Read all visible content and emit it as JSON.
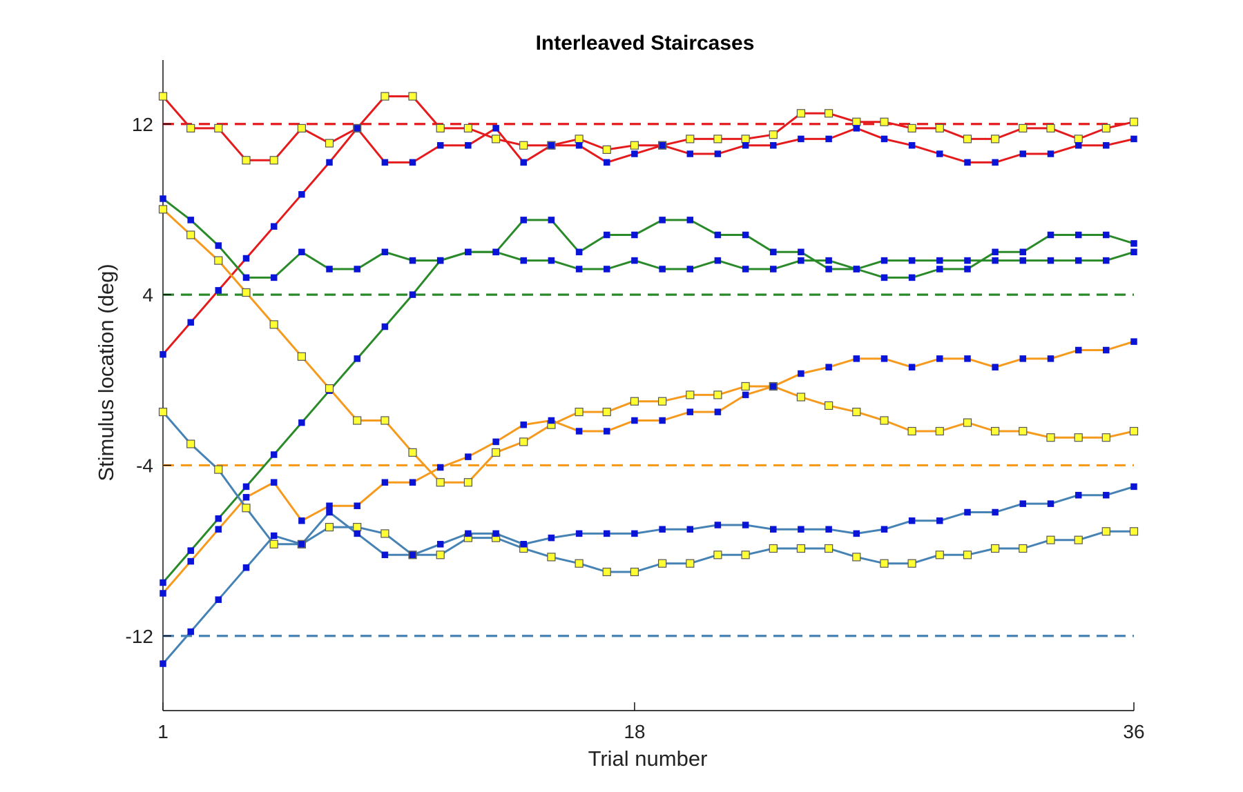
{
  "chart_data": {
    "type": "line",
    "title": "Interleaved Staircases",
    "xlabel": "Trial number",
    "ylabel": "Stimulus location (deg)",
    "xlim": [
      1,
      36
    ],
    "ylim": [
      -15.5,
      15
    ],
    "xticks": [
      1,
      18,
      36
    ],
    "yticks": [
      -12,
      -4,
      4,
      12
    ],
    "grid": false,
    "legend": "none",
    "colors": {
      "red": "#e41a1c",
      "green": "#2a8a2a",
      "orange": "#f59a1c",
      "blue": "#4682b4",
      "marker_blue": "#0a14d6",
      "marker_yellow": "#ffff33"
    },
    "targets": [
      {
        "color": "red",
        "y": 12
      },
      {
        "color": "green",
        "y": 4
      },
      {
        "color": "orange",
        "y": -4
      },
      {
        "color": "blue",
        "y": -12
      }
    ],
    "x": [
      1,
      2,
      3,
      4,
      5,
      6,
      7,
      8,
      9,
      10,
      11,
      12,
      13,
      14,
      15,
      16,
      17,
      18,
      19,
      20,
      21,
      22,
      23,
      24,
      25,
      26,
      27,
      28,
      29,
      30,
      31,
      32,
      33,
      34,
      35,
      36
    ],
    "series": [
      {
        "color": "red",
        "marker": "yellow",
        "values": [
          13.3,
          11.8,
          11.8,
          10.3,
          10.3,
          11.8,
          11.1,
          11.8,
          13.3,
          13.3,
          11.8,
          11.8,
          11.3,
          11.0,
          11.0,
          11.3,
          10.8,
          11.0,
          11.0,
          11.3,
          11.3,
          11.3,
          11.5,
          12.5,
          12.5,
          12.1,
          12.1,
          11.8,
          11.8,
          11.3,
          11.3,
          11.8,
          11.8,
          11.3,
          11.8,
          12.1
        ]
      },
      {
        "color": "red",
        "marker": "blue",
        "values": [
          1.2,
          2.7,
          4.2,
          5.7,
          7.2,
          8.7,
          10.2,
          11.8,
          10.2,
          10.2,
          11.0,
          11.0,
          11.8,
          10.2,
          11.0,
          11.0,
          10.2,
          10.6,
          11.0,
          10.6,
          10.6,
          11.0,
          11.0,
          11.3,
          11.3,
          11.8,
          11.3,
          11.0,
          10.6,
          10.2,
          10.2,
          10.6,
          10.6,
          11.0,
          11.0,
          11.3
        ]
      },
      {
        "color": "green",
        "marker": "blue",
        "values": [
          8.5,
          7.5,
          6.3,
          4.8,
          4.8,
          6.0,
          5.2,
          5.2,
          6.0,
          5.6,
          5.6,
          6.0,
          6.0,
          7.5,
          7.5,
          6.0,
          6.8,
          6.8,
          7.5,
          7.5,
          6.8,
          6.8,
          6.0,
          6.0,
          5.2,
          5.2,
          4.8,
          4.8,
          5.2,
          5.2,
          6.0,
          6.0,
          6.8,
          6.8,
          6.8,
          6.4
        ]
      },
      {
        "color": "green",
        "marker": "blue",
        "values": [
          -9.5,
          -8.0,
          -6.5,
          -5.0,
          -3.5,
          -2.0,
          -0.5,
          1.0,
          2.5,
          4.0,
          5.6,
          6.0,
          6.0,
          5.6,
          5.6,
          5.2,
          5.2,
          5.6,
          5.2,
          5.2,
          5.6,
          5.2,
          5.2,
          5.6,
          5.6,
          5.2,
          5.6,
          5.6,
          5.6,
          5.6,
          5.6,
          5.6,
          5.6,
          5.6,
          5.6,
          6.0
        ]
      },
      {
        "color": "orange",
        "marker": "yellow",
        "values": [
          8.0,
          6.8,
          5.6,
          4.1,
          2.6,
          1.1,
          -0.4,
          -1.9,
          -1.9,
          -3.4,
          -4.8,
          -4.8,
          -3.4,
          -2.9,
          -2.1,
          -1.5,
          -1.5,
          -1.0,
          -1.0,
          -0.7,
          -0.7,
          -0.3,
          -0.3,
          -0.8,
          -1.2,
          -1.5,
          -1.9,
          -2.4,
          -2.4,
          -2.0,
          -2.4,
          -2.4,
          -2.7,
          -2.7,
          -2.7,
          -2.4
        ]
      },
      {
        "color": "orange",
        "marker": "blue",
        "values": [
          -10.0,
          -8.5,
          -7.0,
          -5.5,
          -4.8,
          -6.6,
          -5.9,
          -5.9,
          -4.8,
          -4.8,
          -4.1,
          -3.6,
          -2.9,
          -2.1,
          -1.9,
          -2.4,
          -2.4,
          -1.9,
          -1.9,
          -1.5,
          -1.5,
          -0.7,
          -0.3,
          0.3,
          0.6,
          1.0,
          1.0,
          0.6,
          1.0,
          1.0,
          0.6,
          1.0,
          1.0,
          1.4,
          1.4,
          1.8
        ]
      },
      {
        "color": "blue",
        "marker": "yellow",
        "values": [
          -1.5,
          -3.0,
          -4.2,
          -6.0,
          -7.7,
          -7.7,
          -6.9,
          -6.9,
          -7.2,
          -8.2,
          -8.2,
          -7.4,
          -7.4,
          -7.9,
          -8.3,
          -8.6,
          -9.0,
          -9.0,
          -8.6,
          -8.6,
          -8.2,
          -8.2,
          -7.9,
          -7.9,
          -7.9,
          -8.3,
          -8.6,
          -8.6,
          -8.2,
          -8.2,
          -7.9,
          -7.9,
          -7.5,
          -7.5,
          -7.1,
          -7.1
        ]
      },
      {
        "color": "blue",
        "marker": "blue",
        "values": [
          -13.3,
          -11.8,
          -10.3,
          -8.8,
          -7.3,
          -7.7,
          -6.2,
          -7.2,
          -8.2,
          -8.2,
          -7.7,
          -7.2,
          -7.2,
          -7.7,
          -7.4,
          -7.2,
          -7.2,
          -7.2,
          -7.0,
          -7.0,
          -6.8,
          -6.8,
          -7.0,
          -7.0,
          -7.0,
          -7.2,
          -7.0,
          -6.6,
          -6.6,
          -6.2,
          -6.2,
          -5.8,
          -5.8,
          -5.4,
          -5.4,
          -5.0
        ]
      }
    ]
  }
}
